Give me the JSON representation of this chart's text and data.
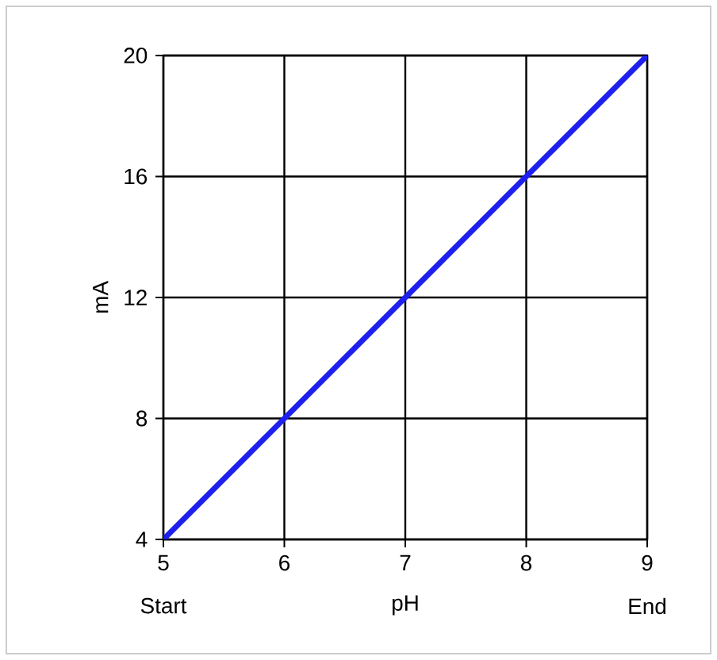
{
  "chart_data": {
    "type": "line",
    "xlabel": "pH",
    "ylabel": "mA",
    "x": [
      5,
      9
    ],
    "series": [
      {
        "color": "#1f1fee",
        "values": [
          4,
          20
        ]
      }
    ],
    "xlim": [
      5,
      9
    ],
    "xticks": [
      5,
      6,
      7,
      8,
      9
    ],
    "ylim": [
      4,
      20
    ],
    "yticks": [
      4,
      8,
      12,
      16,
      20
    ],
    "grid": true,
    "marker": "none",
    "line_style": "solid",
    "annotations": [
      "Start",
      "End"
    ]
  }
}
